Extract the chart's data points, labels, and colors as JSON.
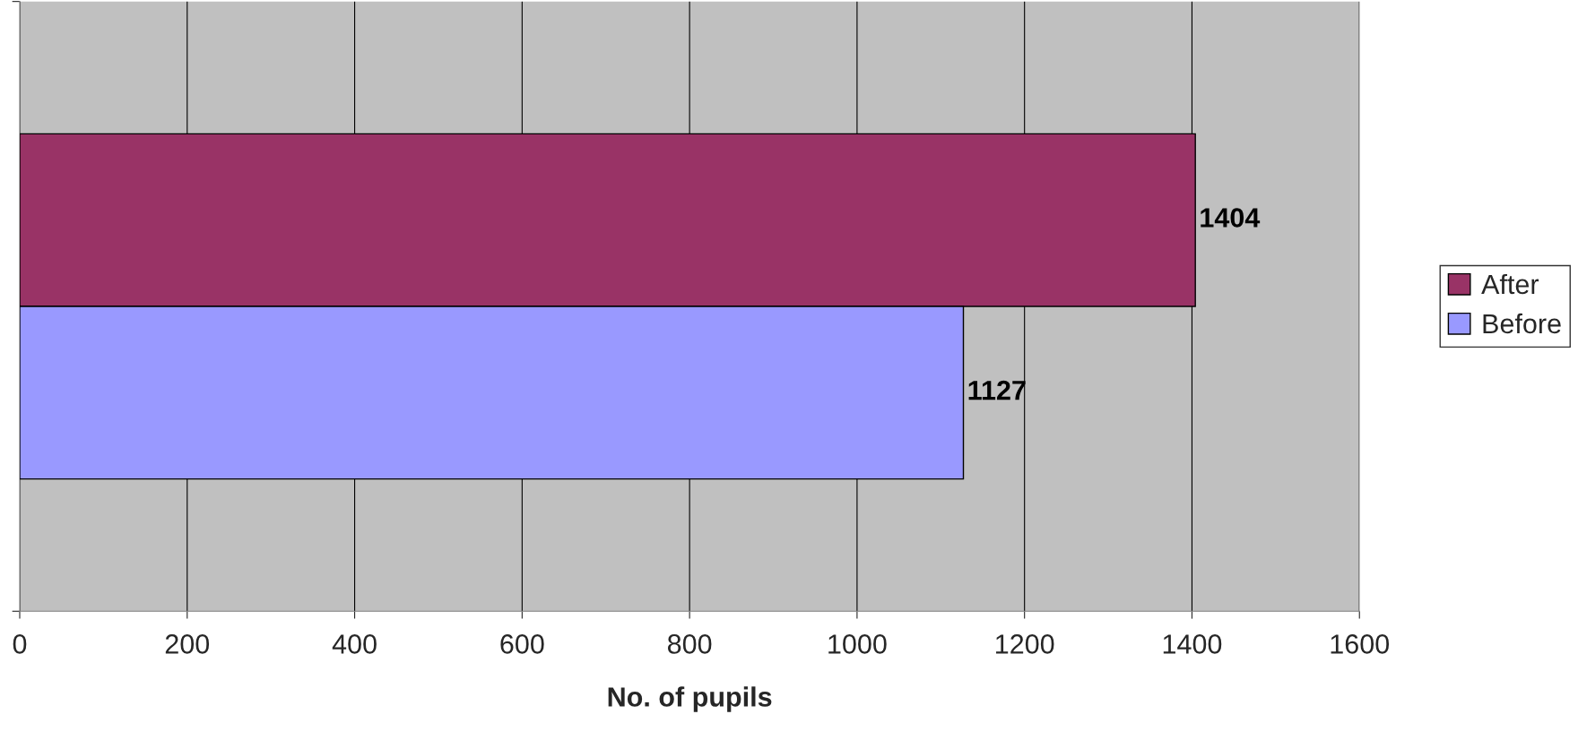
{
  "chart_data": {
    "type": "bar",
    "orientation": "horizontal",
    "xlabel": "No. of pupils",
    "categories": [
      null
    ],
    "series": [
      {
        "name": "After",
        "color": "#993366",
        "values": [
          1404
        ]
      },
      {
        "name": "Before",
        "color": "#9999ff",
        "values": [
          1127
        ]
      }
    ],
    "xlim": [
      0,
      1600
    ],
    "xticks": [
      0,
      200,
      400,
      600,
      800,
      1000,
      1200,
      1400,
      1600
    ],
    "grid": "x",
    "legend": "right",
    "data_labels": true,
    "tick_labels": "x"
  }
}
